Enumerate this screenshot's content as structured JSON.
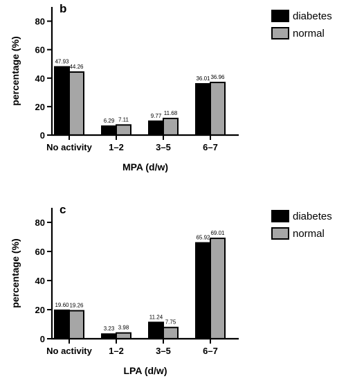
{
  "chart_data": [
    {
      "type": "bar",
      "panel": "b",
      "categories": [
        "No activity",
        "1–2",
        "3–5",
        "6–7"
      ],
      "series": [
        {
          "name": "diabetes",
          "values": [
            47.93,
            6.29,
            9.77,
            36.01
          ],
          "color": "#000000"
        },
        {
          "name": "normal",
          "values": [
            44.26,
            7.11,
            11.68,
            36.96
          ],
          "color": "#a6a6a6"
        }
      ],
      "value_labels": [
        [
          "47.93",
          "6.29",
          "9.77",
          "36.01"
        ],
        [
          "44.26",
          "7.11",
          "11.68",
          "36.96"
        ]
      ],
      "xlabel": "MPA (d/w)",
      "ylabel": "percentage (%)",
      "ylim": [
        0,
        90
      ],
      "yticks": [
        0,
        20,
        40,
        60,
        80
      ],
      "ytick_labels": [
        "0",
        "20",
        "40",
        "60",
        "80"
      ],
      "grid": false,
      "legend": "top-right"
    },
    {
      "type": "bar",
      "panel": "c",
      "categories": [
        "No activity",
        "1–2",
        "3–5",
        "6–7"
      ],
      "series": [
        {
          "name": "diabetes",
          "values": [
            19.6,
            3.23,
            11.24,
            65.92
          ],
          "color": "#000000"
        },
        {
          "name": "normal",
          "values": [
            19.26,
            3.98,
            7.75,
            69.01
          ],
          "color": "#a6a6a6"
        }
      ],
      "value_labels": [
        [
          "19.60",
          "3.23",
          "11.24",
          "65.92"
        ],
        [
          "19.26",
          "3.98",
          "7.75",
          "69.01"
        ]
      ],
      "xlabel": "LPA (d/w)",
      "ylabel": "percentage (%)",
      "ylim": [
        0,
        90
      ],
      "yticks": [
        0,
        20,
        40,
        60,
        80
      ],
      "ytick_labels": [
        "0",
        "20",
        "40",
        "60",
        "80"
      ],
      "grid": false,
      "legend": "top-right"
    }
  ]
}
